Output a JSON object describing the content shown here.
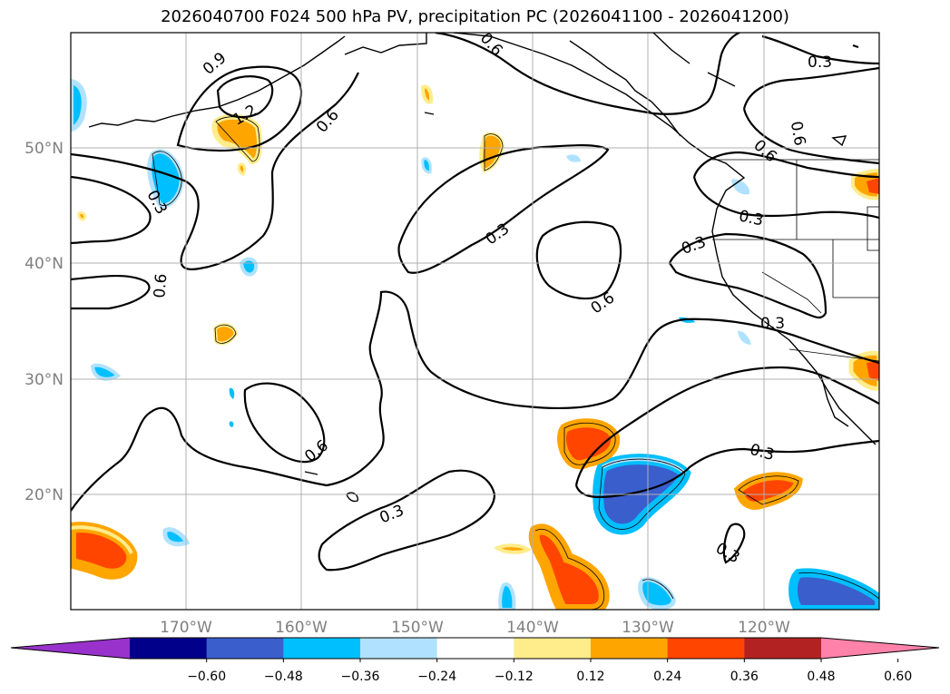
{
  "title": "2026040700 F024 500 hPa PV, precipitation PC (2026041100 - 2026041200)",
  "map": {
    "lat_labels": [
      "50°N",
      "40°N",
      "30°N",
      "20°N"
    ],
    "lon_labels": [
      "170°W",
      "160°W",
      "150°W",
      "140°W",
      "130°W",
      "120°W"
    ],
    "contour_labels": [
      "0.9",
      "1.2",
      "0.6",
      "0.6",
      "0.3",
      "0.6",
      "0.3",
      "0.3",
      "0.6",
      "0.6",
      "0.3",
      "0.6",
      "0.3",
      "0.6",
      "0.3",
      "0.3",
      "0.3",
      "0.3"
    ]
  },
  "colorbar": {
    "tick_labels": [
      "−0.60",
      "−0.48",
      "−0.36",
      "−0.24",
      "−0.12",
      "0.12",
      "0.24",
      "0.36",
      "0.48",
      "0.60"
    ],
    "colors": [
      "#9932cc",
      "#00008b",
      "#3a5fcd",
      "#00bfff",
      "#b0e2ff",
      "#ffffff",
      "#ffec8b",
      "#ffa500",
      "#ff4500",
      "#b22222",
      "#ff82ab"
    ]
  }
}
